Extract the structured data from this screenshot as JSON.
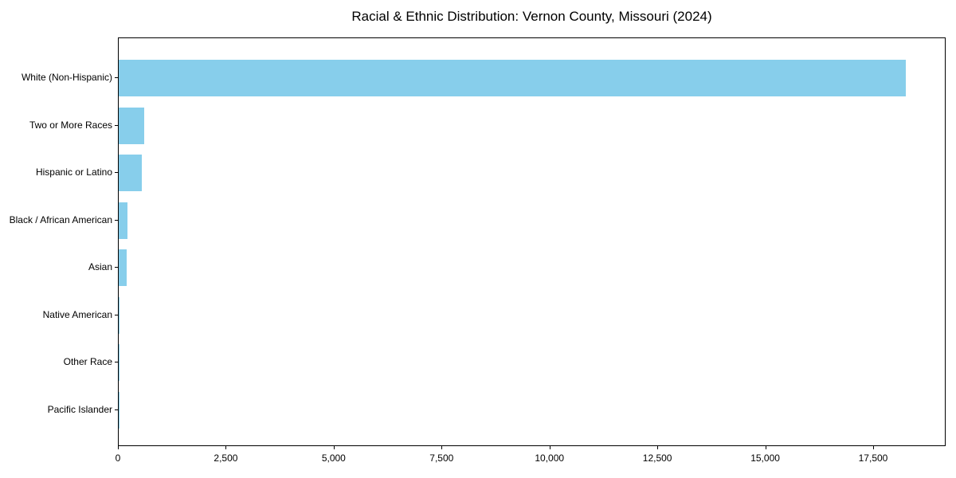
{
  "chart_data": {
    "type": "bar",
    "orientation": "horizontal",
    "title": "Racial & Ethnic Distribution: Vernon County, Missouri (2024)",
    "categories": [
      "White (Non-Hispanic)",
      "Two or More Races",
      "Hispanic or Latino",
      "Black / African American",
      "Asian",
      "Native American",
      "Other Race",
      "Pacific Islander"
    ],
    "values": [
      18240,
      585,
      530,
      200,
      182,
      20,
      8,
      3
    ],
    "bar_color": "#87CEEB",
    "text_color": "#000000",
    "background_color": "#ffffff",
    "xlabel": "",
    "ylabel": "",
    "xlim": [
      0,
      19180
    ],
    "xticks": [
      0,
      2500,
      5000,
      7500,
      10000,
      12500,
      15000,
      17500
    ],
    "xtick_labels": [
      "0",
      "2,500",
      "5,000",
      "7,500",
      "10,000",
      "12,500",
      "15,000",
      "17,500"
    ],
    "grid": false,
    "legend": null
  }
}
